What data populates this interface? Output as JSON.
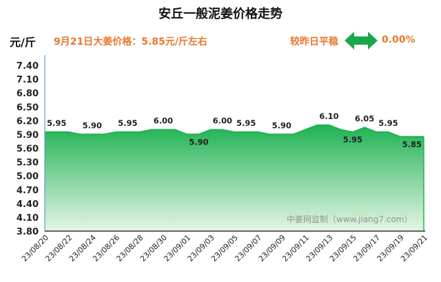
{
  "header": {
    "title": "安丘一般泥姜价格走势",
    "unit": "元/斤",
    "price_note": "9月21日大姜价格：5.85元/斤左右",
    "compare_label": "较昨日平稳",
    "compare_icon": "double-arrow-icon",
    "compare_pct": "0.00%"
  },
  "watermark": "中姜网监制（www.jiang7.com）",
  "colors": {
    "line": "#22b452",
    "fill_top": "#1fb253",
    "fill_bottom": "#e6f5e6",
    "arrow": "#1aa74c",
    "accent_text": "#e8772e"
  },
  "chart_data": {
    "type": "area",
    "x": [
      "23/08/20",
      "23/08/21",
      "23/08/22",
      "23/08/23",
      "23/08/24",
      "23/08/25",
      "23/08/26",
      "23/08/27",
      "23/08/28",
      "23/08/29",
      "23/08/30",
      "23/08/31",
      "23/09/01",
      "23/09/02",
      "23/09/03",
      "23/09/04",
      "23/09/05",
      "23/09/06",
      "23/09/07",
      "23/09/08",
      "23/09/09",
      "23/09/10",
      "23/09/11",
      "23/09/12",
      "23/09/13",
      "23/09/14",
      "23/09/15",
      "23/09/16",
      "23/09/17",
      "23/09/18",
      "23/09/19",
      "23/09/20",
      "23/09/21"
    ],
    "values": [
      5.95,
      5.95,
      5.95,
      5.9,
      5.9,
      5.9,
      5.95,
      5.95,
      5.95,
      6.0,
      6.0,
      6.0,
      5.9,
      5.9,
      6.0,
      6.0,
      5.95,
      5.95,
      5.95,
      5.9,
      5.9,
      5.9,
      6.0,
      6.1,
      6.1,
      6.0,
      5.95,
      6.05,
      5.95,
      5.95,
      5.85,
      5.85,
      5.85
    ],
    "x_tick_labels": [
      "23/08/20",
      "23/08/22",
      "23/08/24",
      "23/08/26",
      "23/08/28",
      "23/08/30",
      "23/09/01",
      "23/09/03",
      "23/09/05",
      "23/09/07",
      "23/09/09",
      "23/09/11",
      "23/09/13",
      "23/09/15",
      "23/09/17",
      "23/09/19",
      "23/09/21"
    ],
    "y_ticks": [
      3.8,
      4.1,
      4.4,
      4.7,
      5.0,
      5.3,
      5.6,
      5.9,
      6.2,
      6.5,
      6.8,
      7.1,
      7.4
    ],
    "ylim": [
      3.8,
      7.4
    ],
    "data_labels": [
      {
        "x": "23/08/21",
        "value": 5.95
      },
      {
        "x": "23/08/24",
        "value": 5.9
      },
      {
        "x": "23/08/27",
        "value": 5.95
      },
      {
        "x": "23/08/30",
        "value": 6.0
      },
      {
        "x": "23/09/02",
        "value": 5.9
      },
      {
        "x": "23/09/04",
        "value": 6.0
      },
      {
        "x": "23/09/06",
        "value": 5.95
      },
      {
        "x": "23/09/09",
        "value": 5.9
      },
      {
        "x": "23/09/13",
        "value": 6.1
      },
      {
        "x": "23/09/15",
        "value": 5.95
      },
      {
        "x": "23/09/16",
        "value": 6.05
      },
      {
        "x": "23/09/18",
        "value": 5.95
      },
      {
        "x": "23/09/20",
        "value": 5.85
      }
    ],
    "grid": false,
    "legend": "none"
  }
}
